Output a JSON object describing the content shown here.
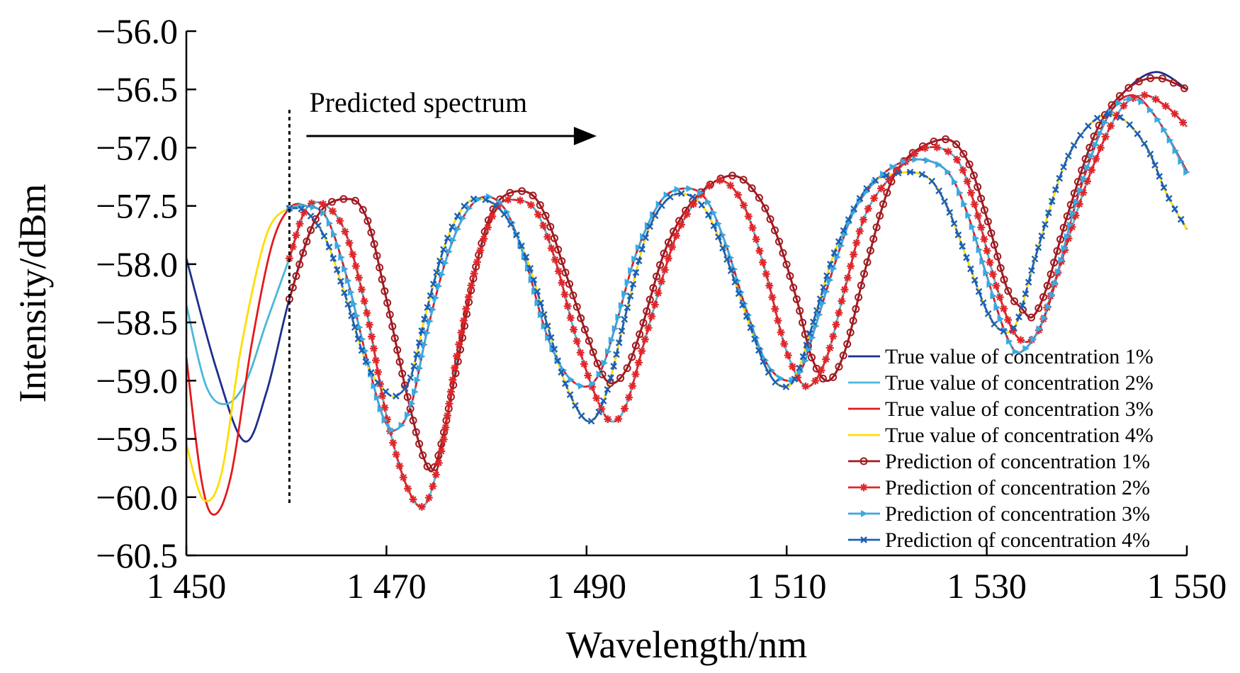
{
  "chart_data": {
    "type": "line",
    "title": "",
    "xlabel": "Wavelength/nm",
    "ylabel": "Intensity/dBm",
    "xlim": [
      1450,
      1550
    ],
    "ylim": [
      -60.5,
      -56.0
    ],
    "xticks": [
      1450,
      1470,
      1490,
      1510,
      1530,
      1550
    ],
    "xtick_labels": [
      "1 450",
      "1 470",
      "1 490",
      "1 510",
      "1 530",
      "1 550"
    ],
    "yticks": [
      -56.0,
      -56.5,
      -57.0,
      -57.5,
      -58.0,
      -58.5,
      -59.0,
      -59.5,
      -60.0,
      -60.5
    ],
    "ytick_labels": [
      "−56.0",
      "−56.5",
      "−57.0",
      "−57.5",
      "−58.0",
      "−58.5",
      "−59.0",
      "−59.5",
      "−60.0",
      "−60.5"
    ],
    "grid": false,
    "legend_position": "bottom-right",
    "annotation": {
      "text": "Predicted spectrum",
      "divider_x": 1460.3,
      "arrow_from_x": 1462,
      "arrow_to_x": 1491
    },
    "series": [
      {
        "name": "True value of concentration 1%",
        "color": "#1f2d8c",
        "style": "solid",
        "x": [
          1450,
          1453,
          1455.8,
          1458,
          1460.3,
          1463,
          1466,
          1468,
          1470,
          1472,
          1473.8,
          1475,
          1477,
          1479,
          1481,
          1484,
          1486,
          1488,
          1490,
          1492,
          1493.8,
          1495.5,
          1498,
          1501,
          1504.5,
          1507,
          1509,
          1511,
          1512.5,
          1514.2,
          1516,
          1518,
          1521,
          1525.5,
          1528,
          1530,
          1532,
          1533.5,
          1534.6,
          1536,
          1538,
          1541,
          1544,
          1547,
          1550
        ],
        "y": [
          -57.95,
          -58.9,
          -59.52,
          -59.1,
          -58.3,
          -57.6,
          -57.44,
          -57.6,
          -58.3,
          -59.1,
          -59.68,
          -59.7,
          -58.9,
          -58.0,
          -57.48,
          -57.38,
          -57.6,
          -58.1,
          -58.6,
          -59.0,
          -58.93,
          -58.55,
          -57.85,
          -57.42,
          -57.24,
          -57.4,
          -57.75,
          -58.3,
          -58.8,
          -59.0,
          -58.7,
          -58.0,
          -57.2,
          -56.93,
          -57.1,
          -57.6,
          -58.2,
          -58.38,
          -58.45,
          -58.2,
          -57.6,
          -56.85,
          -56.5,
          -56.35,
          -56.5
        ]
      },
      {
        "name": "True value of concentration 2%",
        "color": "#4bb8d8",
        "style": "solid",
        "x": [
          1450,
          1452,
          1454,
          1456,
          1458,
          1460.3,
          1462,
          1464,
          1466,
          1468,
          1470,
          1472,
          1473.8,
          1475.5,
          1477,
          1479,
          1481,
          1483,
          1485,
          1487,
          1489,
          1491,
          1492.5,
          1494,
          1496,
          1499,
          1502,
          1504,
          1506,
          1508,
          1510,
          1512,
          1514,
          1516,
          1518,
          1521,
          1524,
          1527,
          1529,
          1531,
          1533,
          1535,
          1537,
          1540,
          1543,
          1545.5,
          1548,
          1550
        ],
        "y": [
          -58.35,
          -59.05,
          -59.2,
          -59.0,
          -58.5,
          -57.95,
          -57.52,
          -57.5,
          -57.75,
          -58.4,
          -59.3,
          -59.9,
          -60.07,
          -59.6,
          -58.8,
          -58.0,
          -57.52,
          -57.45,
          -57.55,
          -58.0,
          -58.65,
          -59.15,
          -59.35,
          -59.2,
          -58.6,
          -57.75,
          -57.35,
          -57.3,
          -57.55,
          -58.1,
          -58.75,
          -59.05,
          -58.8,
          -58.15,
          -57.55,
          -57.2,
          -57.0,
          -57.1,
          -57.55,
          -58.2,
          -58.62,
          -58.6,
          -58.1,
          -57.3,
          -56.72,
          -56.55,
          -56.65,
          -56.82
        ]
      },
      {
        "name": "True value of concentration 3%",
        "color": "#e31a1c",
        "style": "solid",
        "x": [
          1450,
          1451.5,
          1452.8,
          1454.5,
          1456.5,
          1458.5,
          1460.3,
          1462,
          1464,
          1466,
          1468,
          1469.7,
          1471,
          1472.5,
          1474,
          1476,
          1478,
          1480,
          1482,
          1484,
          1486,
          1488,
          1490,
          1491.5,
          1493,
          1495,
          1497.5,
          1500,
          1502,
          1504,
          1506,
          1508,
          1510,
          1511.5,
          1513,
          1515,
          1517,
          1520,
          1523,
          1526,
          1528,
          1530,
          1532,
          1533.5,
          1536,
          1539,
          1542,
          1544.5,
          1547,
          1550
        ],
        "y": [
          -58.8,
          -59.85,
          -60.15,
          -59.8,
          -58.7,
          -57.85,
          -57.52,
          -57.5,
          -57.6,
          -58.1,
          -58.8,
          -59.32,
          -59.42,
          -59.2,
          -58.6,
          -57.95,
          -57.55,
          -57.42,
          -57.55,
          -58.0,
          -58.6,
          -58.95,
          -59.05,
          -58.9,
          -58.5,
          -57.9,
          -57.45,
          -57.35,
          -57.45,
          -57.85,
          -58.4,
          -58.85,
          -59.0,
          -58.9,
          -58.5,
          -57.95,
          -57.5,
          -57.2,
          -57.1,
          -57.2,
          -57.55,
          -58.1,
          -58.62,
          -58.75,
          -58.4,
          -57.45,
          -56.75,
          -56.55,
          -56.75,
          -57.2
        ]
      },
      {
        "name": "True value of concentration 4%",
        "color": "#ffdd00",
        "style": "solid",
        "x": [
          1450,
          1451.7,
          1453.5,
          1455.5,
          1458,
          1460.3,
          1462,
          1464,
          1466,
          1468,
          1470,
          1471.2,
          1472.5,
          1474,
          1476,
          1478,
          1480,
          1482,
          1484,
          1486,
          1488,
          1490.2,
          1492,
          1494,
          1496,
          1498,
          1500,
          1502,
          1504,
          1506,
          1508,
          1509.6,
          1511,
          1513,
          1515,
          1518,
          1521,
          1524,
          1526,
          1528,
          1530,
          1531.5,
          1533,
          1535,
          1538,
          1541,
          1543.5,
          1546,
          1548,
          1550
        ],
        "y": [
          -59.55,
          -60.02,
          -59.8,
          -58.7,
          -57.75,
          -57.52,
          -57.55,
          -57.8,
          -58.3,
          -58.85,
          -59.1,
          -59.12,
          -58.95,
          -58.4,
          -57.8,
          -57.48,
          -57.45,
          -57.6,
          -57.95,
          -58.5,
          -59.05,
          -59.35,
          -59.1,
          -58.4,
          -57.75,
          -57.45,
          -57.4,
          -57.55,
          -57.95,
          -58.45,
          -58.9,
          -59.05,
          -58.95,
          -58.4,
          -57.85,
          -57.35,
          -57.22,
          -57.25,
          -57.5,
          -57.95,
          -58.4,
          -58.57,
          -58.5,
          -57.9,
          -57.1,
          -56.75,
          -56.75,
          -57.0,
          -57.4,
          -57.7
        ]
      },
      {
        "name": "Prediction of concentration 1%",
        "color": "#a21a1e",
        "style": "solid",
        "marker": "circle",
        "x": [
          1460.3,
          1463,
          1466,
          1468,
          1470,
          1472,
          1473.8,
          1475,
          1477,
          1479,
          1481,
          1484,
          1486,
          1488,
          1490,
          1492,
          1493.8,
          1495.5,
          1498,
          1501,
          1504.5,
          1507,
          1509,
          1511,
          1512.5,
          1514.2,
          1516,
          1518,
          1521,
          1525.5,
          1528,
          1530,
          1532,
          1533.5,
          1534.6,
          1536,
          1538,
          1541,
          1544,
          1547,
          1550
        ],
        "y": [
          -58.3,
          -57.6,
          -57.44,
          -57.6,
          -58.3,
          -59.1,
          -59.68,
          -59.7,
          -58.9,
          -58.0,
          -57.48,
          -57.38,
          -57.6,
          -58.1,
          -58.6,
          -59.0,
          -58.93,
          -58.55,
          -57.85,
          -57.42,
          -57.24,
          -57.4,
          -57.75,
          -58.3,
          -58.8,
          -59.0,
          -58.7,
          -58.0,
          -57.2,
          -56.93,
          -57.1,
          -57.6,
          -58.2,
          -58.38,
          -58.45,
          -58.2,
          -57.6,
          -56.85,
          -56.5,
          -56.4,
          -56.5
        ]
      },
      {
        "name": "Prediction of concentration 2%",
        "color": "#e0262a",
        "style": "dashed",
        "marker": "star",
        "x": [
          1460.3,
          1462,
          1464,
          1466,
          1468,
          1470,
          1472,
          1473.8,
          1475.5,
          1477,
          1479,
          1481,
          1483,
          1485,
          1487,
          1489,
          1491,
          1492.5,
          1494,
          1496,
          1499,
          1502,
          1504,
          1506,
          1508,
          1510,
          1512,
          1514,
          1516,
          1518,
          1521,
          1524,
          1527,
          1529,
          1531,
          1533,
          1535,
          1537,
          1540,
          1543,
          1545.5,
          1548,
          1550
        ],
        "y": [
          -57.95,
          -57.52,
          -57.5,
          -57.75,
          -58.4,
          -59.3,
          -59.9,
          -60.07,
          -59.6,
          -58.8,
          -58.0,
          -57.52,
          -57.45,
          -57.55,
          -58.0,
          -58.65,
          -59.15,
          -59.35,
          -59.2,
          -58.6,
          -57.75,
          -57.35,
          -57.3,
          -57.55,
          -58.1,
          -58.75,
          -59.05,
          -58.8,
          -58.15,
          -57.55,
          -57.2,
          -57.0,
          -57.1,
          -57.55,
          -58.2,
          -58.62,
          -58.6,
          -58.1,
          -57.3,
          -56.72,
          -56.55,
          -56.65,
          -56.82
        ]
      },
      {
        "name": "Prediction of concentration 3%",
        "color": "#39a9e0",
        "style": "dashed",
        "marker": "triangle-right",
        "x": [
          1460.3,
          1462,
          1464,
          1466,
          1468,
          1469.7,
          1471,
          1472.5,
          1474,
          1476,
          1478,
          1480,
          1482,
          1484,
          1486,
          1488,
          1490,
          1491.5,
          1493,
          1495,
          1497.5,
          1500,
          1502,
          1504,
          1506,
          1508,
          1510,
          1511.5,
          1513,
          1515,
          1517,
          1520,
          1523,
          1526,
          1528,
          1530,
          1532,
          1533.5,
          1536,
          1539,
          1542,
          1544.5,
          1547,
          1550
        ],
        "y": [
          -57.52,
          -57.5,
          -57.6,
          -58.1,
          -58.8,
          -59.32,
          -59.42,
          -59.2,
          -58.6,
          -57.95,
          -57.55,
          -57.42,
          -57.55,
          -58.0,
          -58.6,
          -58.95,
          -59.05,
          -58.9,
          -58.5,
          -57.9,
          -57.45,
          -57.35,
          -57.45,
          -57.85,
          -58.4,
          -58.85,
          -59.0,
          -58.9,
          -58.5,
          -57.95,
          -57.5,
          -57.2,
          -57.1,
          -57.2,
          -57.55,
          -58.1,
          -58.62,
          -58.75,
          -58.4,
          -57.45,
          -56.75,
          -56.58,
          -56.75,
          -57.22
        ]
      },
      {
        "name": "Prediction of concentration 4%",
        "color": "#1d5fb4",
        "style": "dashed",
        "marker": "x",
        "x": [
          1460.3,
          1462,
          1464,
          1466,
          1468,
          1470,
          1471.2,
          1472.5,
          1474,
          1476,
          1478,
          1480,
          1482,
          1484,
          1486,
          1488,
          1490.2,
          1492,
          1494,
          1496,
          1498,
          1500,
          1502,
          1504,
          1506,
          1508,
          1509.6,
          1511,
          1513,
          1515,
          1518,
          1521,
          1524,
          1526,
          1528,
          1530,
          1531.5,
          1533,
          1535,
          1538,
          1541,
          1543.5,
          1546,
          1548,
          1550
        ],
        "y": [
          -57.52,
          -57.55,
          -57.8,
          -58.3,
          -58.85,
          -59.1,
          -59.12,
          -58.95,
          -58.4,
          -57.8,
          -57.48,
          -57.45,
          -57.6,
          -57.95,
          -58.5,
          -59.05,
          -59.35,
          -59.1,
          -58.4,
          -57.75,
          -57.45,
          -57.4,
          -57.55,
          -57.95,
          -58.45,
          -58.9,
          -59.05,
          -58.95,
          -58.4,
          -57.85,
          -57.35,
          -57.22,
          -57.25,
          -57.5,
          -57.95,
          -58.4,
          -58.57,
          -58.5,
          -57.9,
          -57.1,
          -56.75,
          -56.75,
          -57.0,
          -57.4,
          -57.7
        ]
      }
    ]
  }
}
